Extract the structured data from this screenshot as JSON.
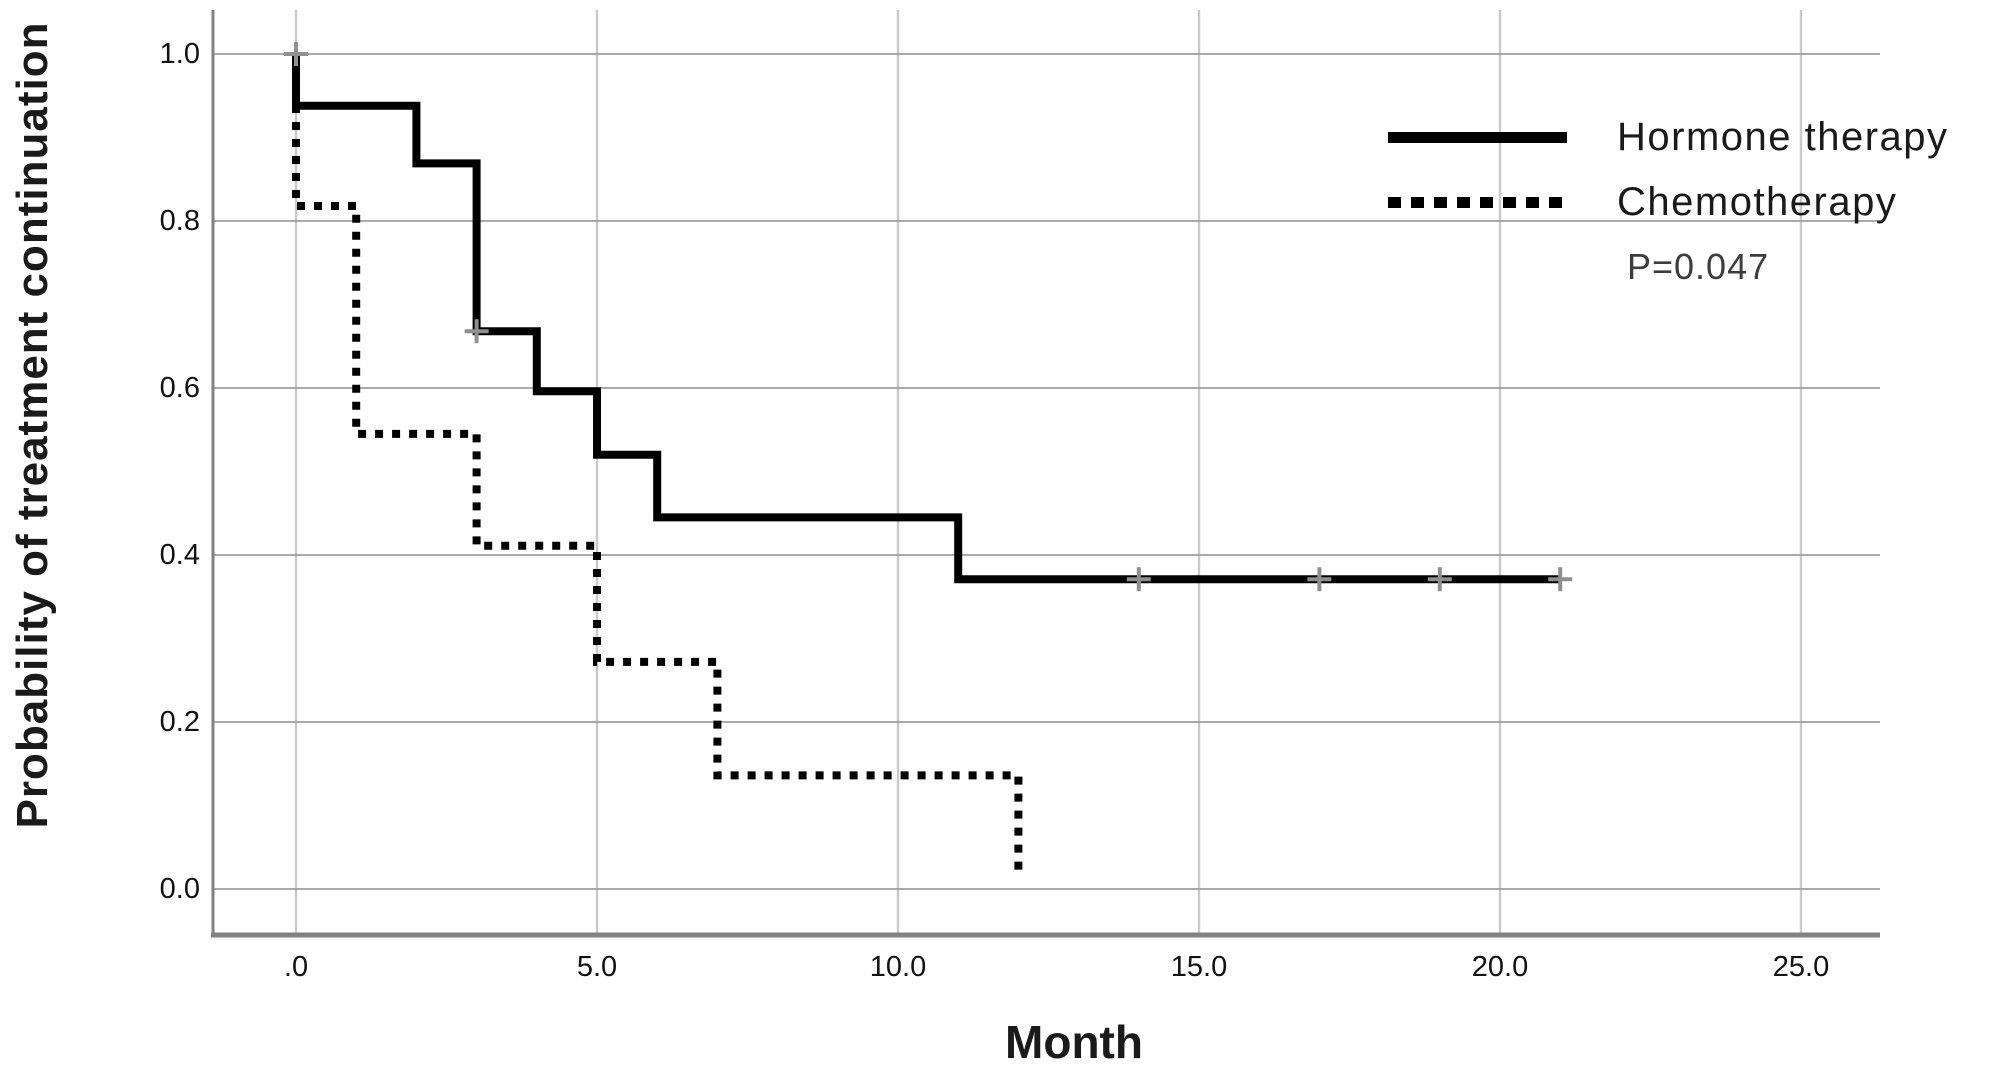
{
  "axes": {
    "x_title": "Month",
    "y_title": "Probability of treatment continuation"
  },
  "legend": {
    "hormone_label": "Hormone therapy",
    "chemo_label": "Chemotherapy",
    "p_value_label": "P=0.047"
  },
  "colors": {
    "curve": "#000000",
    "grid_horizontal": "#9e9e9e",
    "grid_vertical": "#c9c9c9",
    "axis_line": "#828282",
    "censor_mark": "#8f8f8f",
    "text": "#1a1a1a",
    "p_value_text": "#3d3d3d",
    "background": "#ffffff"
  },
  "chart_data": {
    "type": "line",
    "chart_kind": "kaplan_meier_step",
    "title": "",
    "xlabel": "Month",
    "ylabel": "Probability of treatment continuation",
    "xlim": [
      -1.4,
      26.3
    ],
    "ylim": [
      -0.055,
      1.05
    ],
    "grid": true,
    "legend_position": "upper right",
    "annotation": "P=0.047",
    "xticks": {
      "values": [
        0,
        5,
        10,
        15,
        20,
        25
      ],
      "labels": [
        ".0",
        "5.0",
        "10.0",
        "15.0",
        "20.0",
        "25.0"
      ]
    },
    "yticks": {
      "values": [
        0.0,
        0.2,
        0.4,
        0.6,
        0.8,
        1.0
      ],
      "labels": [
        "0.0",
        "0.2",
        "0.4",
        "0.6",
        "0.8",
        "1.0"
      ]
    },
    "series": [
      {
        "name": "Hormone therapy",
        "line_style": "solid",
        "color": "#000000",
        "step_points": [
          [
            0,
            1.0
          ],
          [
            0,
            0.938
          ],
          [
            2,
            0.938
          ],
          [
            2,
            0.869
          ],
          [
            3,
            0.869
          ],
          [
            3,
            0.668
          ],
          [
            4,
            0.668
          ],
          [
            4,
            0.596
          ],
          [
            5,
            0.596
          ],
          [
            5,
            0.52
          ],
          [
            6,
            0.52
          ],
          [
            6,
            0.445
          ],
          [
            11,
            0.445
          ],
          [
            11,
            0.371
          ],
          [
            21,
            0.371
          ]
        ],
        "censor_marks": [
          [
            0,
            1.0
          ],
          [
            3,
            0.668
          ],
          [
            14,
            0.371
          ],
          [
            17,
            0.371
          ],
          [
            19,
            0.371
          ],
          [
            21,
            0.371
          ]
        ]
      },
      {
        "name": "Chemotherapy",
        "line_style": "dotted",
        "color": "#000000",
        "step_points": [
          [
            0,
            1.0
          ],
          [
            0,
            0.818
          ],
          [
            1,
            0.818
          ],
          [
            1,
            0.545
          ],
          [
            3,
            0.545
          ],
          [
            3,
            0.411
          ],
          [
            5,
            0.411
          ],
          [
            5,
            0.272
          ],
          [
            7,
            0.272
          ],
          [
            7,
            0.136
          ],
          [
            12,
            0.136
          ],
          [
            12,
            0.015
          ]
        ],
        "censor_marks": []
      }
    ]
  }
}
